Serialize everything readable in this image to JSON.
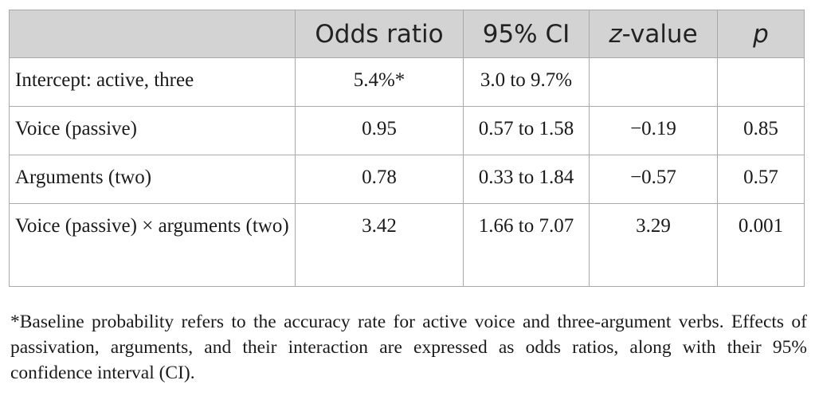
{
  "table": {
    "headers": [
      "",
      "Odds ratio",
      "95% CI",
      "z-value",
      "p"
    ],
    "rows": [
      {
        "label": "Intercept: active, three",
        "odds": "5.4%*",
        "ci": "3.0 to 9.7%",
        "z": "",
        "p": ""
      },
      {
        "label": "Voice (passive)",
        "odds": "0.95",
        "ci": "0.57 to 1.58",
        "z": "−0.19",
        "p": "0.85"
      },
      {
        "label": "Arguments (two)",
        "odds": "0.78",
        "ci": "0.33 to 1.84",
        "z": "−0.57",
        "p": "0.57"
      },
      {
        "label": "Voice (passive) × arguments (two)",
        "odds": "3.42",
        "ci": "1.66 to 7.07",
        "z": "3.29",
        "p": "0.001"
      }
    ]
  },
  "footnote": "*Baseline probability refers to the accuracy rate for active voice and three-argument verbs. Effects of passivation, arguments, and their interaction are expressed as odds ratios, along with their 95% confidence interval (CI)."
}
